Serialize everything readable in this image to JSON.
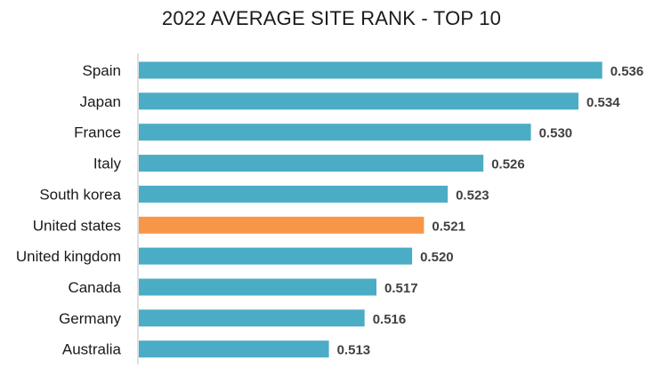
{
  "chart_data": {
    "type": "bar",
    "orientation": "horizontal",
    "title": "2022 AVERAGE SITE RANK - TOP 10",
    "categories": [
      "Spain",
      "Japan",
      "France",
      "Italy",
      "South korea",
      "United states",
      "United kingdom",
      "Canada",
      "Germany",
      "Australia"
    ],
    "values": [
      0.536,
      0.534,
      0.53,
      0.526,
      0.523,
      0.521,
      0.52,
      0.517,
      0.516,
      0.513
    ],
    "value_labels": [
      "0.536",
      "0.534",
      "0.530",
      "0.526",
      "0.523",
      "0.521",
      "0.520",
      "0.517",
      "0.516",
      "0.513"
    ],
    "highlight_category": "United states",
    "xlabel": "",
    "ylabel": "",
    "grid": false,
    "legend": "none",
    "colors": {
      "bar": "#4BACC6",
      "highlight": "#F79646",
      "axis": "#BFBFBF",
      "category_label": "#1a1a1a",
      "value_label": "#404040"
    }
  }
}
